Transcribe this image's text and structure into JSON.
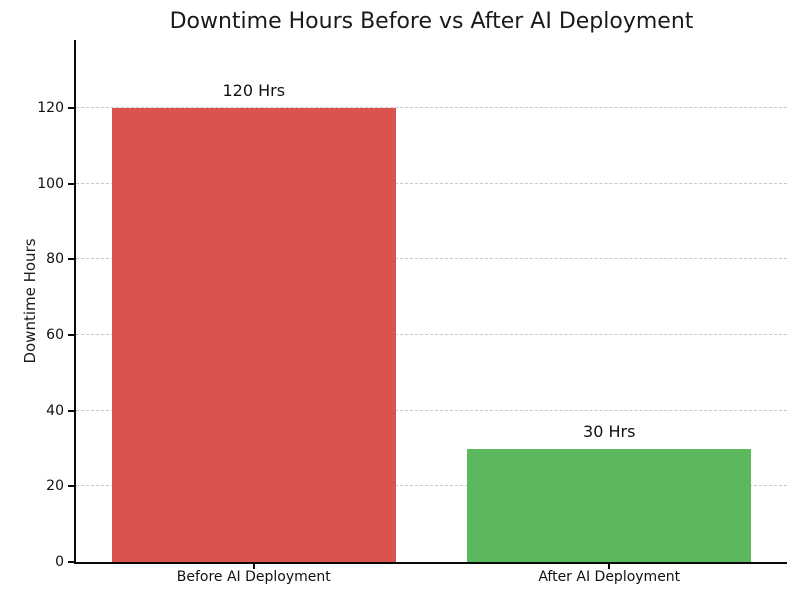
{
  "chart_data": {
    "type": "bar",
    "title": "Downtime Hours Before vs After AI Deployment",
    "xlabel": "",
    "ylabel": "Downtime Hours",
    "categories": [
      "Before AI Deployment",
      "After AI Deployment"
    ],
    "values": [
      120,
      30
    ],
    "bar_labels": [
      "120 Hrs",
      "30 Hrs"
    ],
    "bar_colors": [
      "#d9534f",
      "#5cb85c"
    ],
    "yticks": [
      0,
      20,
      40,
      60,
      80,
      100,
      120
    ],
    "ylim": [
      0,
      138
    ],
    "bar_width": 0.8,
    "grid": {
      "axis": "y",
      "style": "dashed",
      "color": "#c8c8c8"
    },
    "legend_position": "none",
    "background": "#ffffff",
    "spine_color": "#0a0a0a",
    "text_color": "#1a1a1a"
  }
}
